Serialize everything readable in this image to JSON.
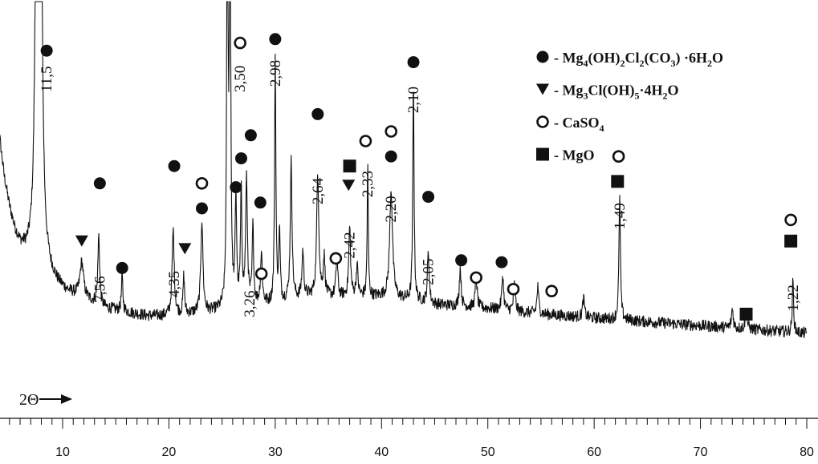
{
  "chart_data": {
    "type": "line",
    "xlabel": "2Θ",
    "xlim": [
      3.5,
      80
    ],
    "x_ticks": [
      10,
      20,
      30,
      40,
      50,
      60,
      70,
      80
    ],
    "grid": false,
    "legend": {
      "placement": "top-right",
      "entries": [
        {
          "marker": "filled-circle",
          "prefix": " - ",
          "parts": [
            [
              "Mg",
              ""
            ],
            [
              "4",
              "sub"
            ],
            [
              "(OH)",
              ""
            ],
            [
              "2",
              "sub"
            ],
            [
              "Cl",
              ""
            ],
            [
              "2",
              "sub"
            ],
            [
              "(CO",
              ""
            ],
            [
              "3",
              "sub"
            ],
            [
              ") ·6H",
              ""
            ],
            [
              "2",
              "sub"
            ],
            [
              "O",
              ""
            ]
          ]
        },
        {
          "marker": "filled-triangle-down",
          "prefix": " - ",
          "parts": [
            [
              "Mg",
              ""
            ],
            [
              "3",
              "sub"
            ],
            [
              "Cl(OH)",
              ""
            ],
            [
              "5",
              "sub"
            ],
            [
              "·4H",
              ""
            ],
            [
              "2",
              "sub"
            ],
            [
              "O",
              ""
            ]
          ]
        },
        {
          "marker": "open-circle",
          "prefix": " - ",
          "parts": [
            [
              "CaSO",
              ""
            ],
            [
              "4",
              "sub"
            ]
          ]
        },
        {
          "marker": "filled-square",
          "prefix": " - ",
          "parts": [
            [
              "MgO",
              ""
            ]
          ]
        }
      ]
    },
    "peak_labels": [
      {
        "x": 8.5,
        "text": "11,5"
      },
      {
        "x": 13.5,
        "text": "7,56"
      },
      {
        "x": 20.5,
        "text": "4,35"
      },
      {
        "x": 26.7,
        "text": "3,50"
      },
      {
        "x": 27.6,
        "text": "3,26"
      },
      {
        "x": 30.0,
        "text": "2,98"
      },
      {
        "x": 34.0,
        "text": "2,64"
      },
      {
        "x": 37.0,
        "text": "2,42"
      },
      {
        "x": 38.7,
        "text": "2,33"
      },
      {
        "x": 40.9,
        "text": "2,20"
      },
      {
        "x": 43.0,
        "text": "2,10"
      },
      {
        "x": 44.4,
        "text": "2,05"
      },
      {
        "x": 62.4,
        "text": "1,49"
      },
      {
        "x": 78.7,
        "text": "1,22"
      }
    ],
    "markers": [
      {
        "x": 8.5,
        "y": 0.91,
        "type": "filled-circle"
      },
      {
        "x": 13.5,
        "y": 0.565,
        "type": "filled-circle"
      },
      {
        "x": 15.6,
        "y": 0.345,
        "type": "filled-circle"
      },
      {
        "x": 20.5,
        "y": 0.61,
        "type": "filled-circle"
      },
      {
        "x": 23.1,
        "y": 0.5,
        "type": "filled-circle"
      },
      {
        "x": 26.3,
        "y": 0.555,
        "type": "filled-circle"
      },
      {
        "x": 26.8,
        "y": 0.63,
        "type": "filled-circle"
      },
      {
        "x": 27.7,
        "y": 0.69,
        "type": "filled-circle"
      },
      {
        "x": 28.6,
        "y": 0.515,
        "type": "filled-circle"
      },
      {
        "x": 30.0,
        "y": 0.94,
        "type": "filled-circle"
      },
      {
        "x": 34.0,
        "y": 0.745,
        "type": "filled-circle"
      },
      {
        "x": 40.9,
        "y": 0.635,
        "type": "filled-circle"
      },
      {
        "x": 43.0,
        "y": 0.88,
        "type": "filled-circle"
      },
      {
        "x": 44.4,
        "y": 0.53,
        "type": "filled-circle"
      },
      {
        "x": 47.5,
        "y": 0.365,
        "type": "filled-circle"
      },
      {
        "x": 51.3,
        "y": 0.36,
        "type": "filled-circle"
      },
      {
        "x": 11.8,
        "y": 0.415,
        "type": "filled-triangle-down"
      },
      {
        "x": 21.5,
        "y": 0.395,
        "type": "filled-triangle-down"
      },
      {
        "x": 36.9,
        "y": 0.56,
        "type": "filled-triangle-down"
      },
      {
        "x": 23.1,
        "y": 0.565,
        "type": "open-circle"
      },
      {
        "x": 26.7,
        "y": 0.93,
        "type": "open-circle"
      },
      {
        "x": 28.7,
        "y": 0.33,
        "type": "open-circle"
      },
      {
        "x": 35.7,
        "y": 0.37,
        "type": "open-circle"
      },
      {
        "x": 38.5,
        "y": 0.675,
        "type": "open-circle"
      },
      {
        "x": 40.9,
        "y": 0.7,
        "type": "open-circle"
      },
      {
        "x": 48.9,
        "y": 0.32,
        "type": "open-circle"
      },
      {
        "x": 52.4,
        "y": 0.29,
        "type": "open-circle"
      },
      {
        "x": 56.0,
        "y": 0.285,
        "type": "open-circle"
      },
      {
        "x": 62.3,
        "y": 0.635,
        "type": "open-circle"
      },
      {
        "x": 78.5,
        "y": 0.47,
        "type": "open-circle"
      },
      {
        "x": 37.0,
        "y": 0.61,
        "type": "filled-square"
      },
      {
        "x": 62.2,
        "y": 0.57,
        "type": "filled-square"
      },
      {
        "x": 74.3,
        "y": 0.225,
        "type": "filled-square"
      },
      {
        "x": 78.5,
        "y": 0.415,
        "type": "filled-square"
      }
    ],
    "baseline_profile": [
      [
        3.5,
        0.82
      ],
      [
        4.0,
        0.7
      ],
      [
        4.5,
        0.58
      ],
      [
        5.0,
        0.5
      ],
      [
        5.5,
        0.44
      ],
      [
        6.0,
        0.4
      ],
      [
        6.5,
        0.38
      ],
      [
        7.2,
        0.36
      ],
      [
        8.5,
        0.33
      ],
      [
        9.5,
        0.3
      ],
      [
        10.5,
        0.28
      ],
      [
        12,
        0.265
      ],
      [
        14,
        0.24
      ],
      [
        16,
        0.23
      ],
      [
        18,
        0.22
      ],
      [
        20,
        0.22
      ],
      [
        24,
        0.23
      ],
      [
        26,
        0.24
      ],
      [
        28,
        0.25
      ],
      [
        30,
        0.25
      ],
      [
        33,
        0.27
      ],
      [
        36,
        0.27
      ],
      [
        40,
        0.27
      ],
      [
        43,
        0.26
      ],
      [
        45,
        0.25
      ],
      [
        50,
        0.24
      ],
      [
        55,
        0.225
      ],
      [
        60,
        0.215
      ],
      [
        65,
        0.205
      ],
      [
        70,
        0.195
      ],
      [
        75,
        0.185
      ],
      [
        80,
        0.175
      ]
    ],
    "peaks": [
      {
        "x": 7.6,
        "h": 1.5,
        "w": 0.15
      },
      {
        "x": 7.9,
        "h": 1.5,
        "w": 0.15
      },
      {
        "x": 11.8,
        "h": 0.09,
        "w": 0.2
      },
      {
        "x": 13.4,
        "h": 0.18,
        "w": 0.1
      },
      {
        "x": 15.6,
        "h": 0.09,
        "w": 0.08
      },
      {
        "x": 20.4,
        "h": 0.22,
        "w": 0.12
      },
      {
        "x": 21.4,
        "h": 0.1,
        "w": 0.08
      },
      {
        "x": 23.1,
        "h": 0.24,
        "w": 0.12
      },
      {
        "x": 25.5,
        "h": 1.5,
        "w": 0.06
      },
      {
        "x": 25.75,
        "h": 1.5,
        "w": 0.06
      },
      {
        "x": 26.3,
        "h": 0.28,
        "w": 0.08
      },
      {
        "x": 26.8,
        "h": 0.29,
        "w": 0.08
      },
      {
        "x": 27.3,
        "h": 0.32,
        "w": 0.1
      },
      {
        "x": 27.9,
        "h": 0.2,
        "w": 0.08
      },
      {
        "x": 28.7,
        "h": 0.13,
        "w": 0.1
      },
      {
        "x": 30.0,
        "h": 0.64,
        "w": 0.07
      },
      {
        "x": 30.4,
        "h": 0.18,
        "w": 0.08
      },
      {
        "x": 31.5,
        "h": 0.36,
        "w": 0.1
      },
      {
        "x": 32.6,
        "h": 0.12,
        "w": 0.1
      },
      {
        "x": 34.0,
        "h": 0.32,
        "w": 0.12
      },
      {
        "x": 34.6,
        "h": 0.1,
        "w": 0.1
      },
      {
        "x": 35.8,
        "h": 0.1,
        "w": 0.1
      },
      {
        "x": 37.0,
        "h": 0.18,
        "w": 0.1
      },
      {
        "x": 37.7,
        "h": 0.08,
        "w": 0.1
      },
      {
        "x": 38.7,
        "h": 0.34,
        "w": 0.06
      },
      {
        "x": 40.9,
        "h": 0.28,
        "w": 0.16
      },
      {
        "x": 43.0,
        "h": 0.57,
        "w": 0.07
      },
      {
        "x": 44.4,
        "h": 0.13,
        "w": 0.1
      },
      {
        "x": 47.4,
        "h": 0.1,
        "w": 0.1
      },
      {
        "x": 48.9,
        "h": 0.08,
        "w": 0.1
      },
      {
        "x": 51.4,
        "h": 0.09,
        "w": 0.1
      },
      {
        "x": 52.5,
        "h": 0.07,
        "w": 0.1
      },
      {
        "x": 54.7,
        "h": 0.07,
        "w": 0.1
      },
      {
        "x": 59.0,
        "h": 0.05,
        "w": 0.1
      },
      {
        "x": 62.4,
        "h": 0.32,
        "w": 0.08
      },
      {
        "x": 73.0,
        "h": 0.05,
        "w": 0.1
      },
      {
        "x": 74.3,
        "h": 0.05,
        "w": 0.1
      },
      {
        "x": 78.7,
        "h": 0.14,
        "w": 0.07
      }
    ]
  }
}
